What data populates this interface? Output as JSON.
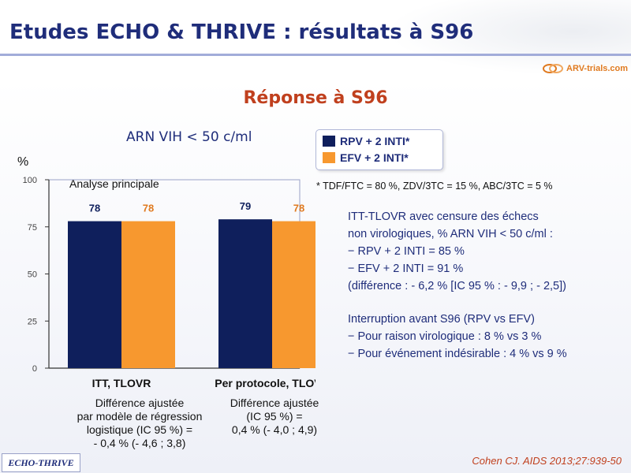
{
  "slide": {
    "title": "Etudes ECHO & THRIVE : résultats à S96",
    "logo": "ARV-trials.com",
    "subtitle": "Réponse à S96",
    "chart_header": "ARN VIH < 50 c/ml",
    "legend": [
      {
        "label": "RPV + 2 INTI*",
        "color": "#0f1f5c"
      },
      {
        "label": "EFV + 2 INTI*",
        "color": "#f7982f"
      }
    ],
    "footnote": "* TDF/FTC = 80 %, ZDV/3TC = 15 %, ABC/3TC = 5 %",
    "itt_block": [
      "ITT-TLOVR avec censure des échecs",
      "non virologiques, % ARN VIH < 50 c/ml :",
      "− RPV + 2 INTI = 85 %",
      "− EFV + 2 INTI = 91 %",
      "(différence : - 6,2 % [IC 95 % : - 9,9 ; - 2,5])"
    ],
    "interruption_block": [
      "Interruption avant S96 (RPV vs EFV)",
      "− Pour raison virologique : 8 % vs 3 %",
      "− Pour événement indésirable : 4 % vs 9 %"
    ],
    "diff_left": [
      "Différence ajustée",
      "par modèle de régression",
      "logistique (IC 95 %) =",
      "- 0,4 % (- 4,6 ; 3,8)"
    ],
    "diff_right": [
      "Différence ajustée",
      "(IC 95 %) =",
      "0,4 % (- 4,0 ; 4,9)"
    ],
    "study_tag": "ECHO-THRIVE",
    "citation": "Cohen CJ. AIDS 2013;27:939-50"
  },
  "chart_data": {
    "type": "bar",
    "categories": [
      "ITT, TLOVR",
      "Per protocole, TLOVR"
    ],
    "series": [
      {
        "name": "RPV + 2 INTI*",
        "values": [
          78,
          79
        ],
        "color": "#0f1f5c",
        "label_color": "#0f1f5c"
      },
      {
        "name": "EFV + 2 INTI*",
        "values": [
          78,
          78
        ],
        "color": "#f7982f",
        "label_color": "#e07a20"
      }
    ],
    "ylabel": "%",
    "ylim": [
      0,
      100
    ],
    "yticks": [
      0,
      25,
      50,
      75,
      100
    ],
    "annotation": "Analyse principale",
    "grid": false
  }
}
